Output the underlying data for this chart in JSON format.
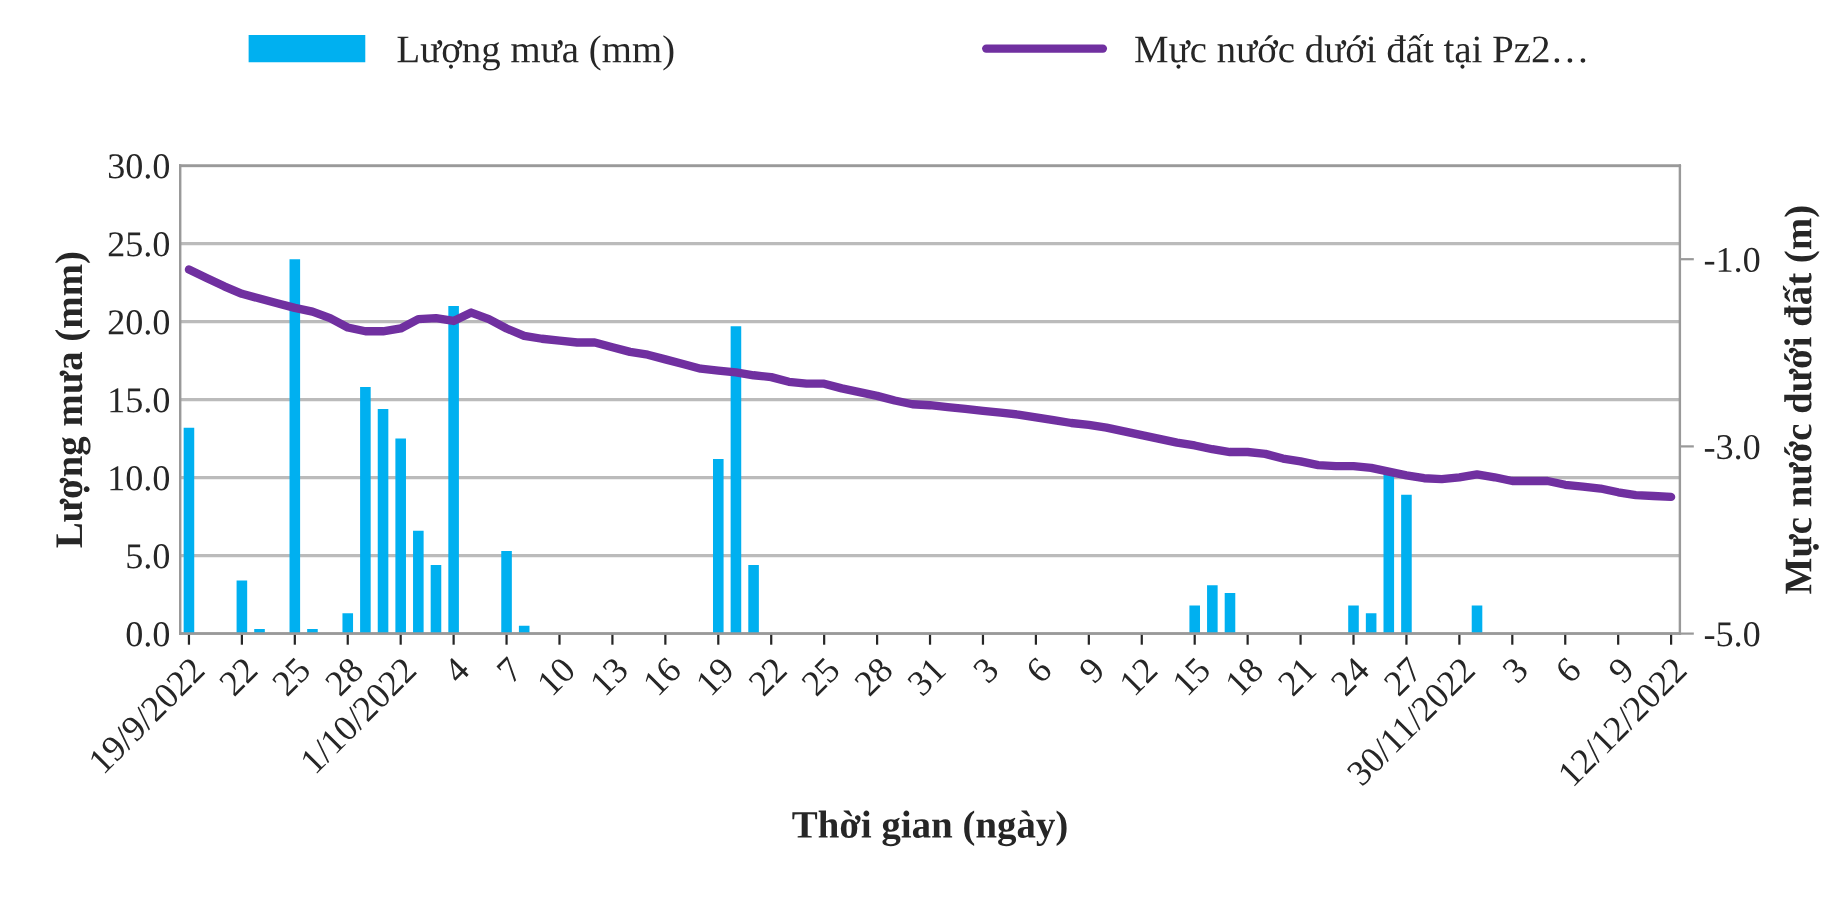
{
  "chart_data": {
    "type": "bar",
    "xlabel": "Thời gian (ngày)",
    "ylabel": "Lượng mưa (mm)",
    "y2label": "Mực nước dưới đất (m)",
    "categories": [
      "19/9/2022",
      null,
      null,
      "22",
      null,
      null,
      "25",
      null,
      null,
      "28",
      null,
      null,
      "1/10/2022",
      null,
      null,
      "4",
      null,
      null,
      "7",
      null,
      null,
      "10",
      null,
      null,
      "13",
      null,
      null,
      "16",
      null,
      null,
      "19",
      null,
      null,
      "22",
      null,
      null,
      "25",
      null,
      null,
      "28",
      null,
      null,
      "31",
      null,
      null,
      "3",
      null,
      null,
      "6",
      null,
      null,
      "9",
      null,
      null,
      "12",
      null,
      null,
      "15",
      null,
      null,
      "18",
      null,
      null,
      "21",
      null,
      null,
      "24",
      null,
      null,
      "27",
      null,
      null,
      "30/11/2022",
      null,
      null,
      "3",
      null,
      null,
      "6",
      null,
      null,
      "9",
      null,
      null,
      "12/12/2022"
    ],
    "series": [
      {
        "name": "Lượng mưa (mm)",
        "color": "#00b0f0",
        "values": [
          13.2,
          0,
          0,
          3.4,
          0.3,
          0,
          24.0,
          0.3,
          0,
          1.3,
          15.8,
          14.4,
          12.5,
          6.6,
          4.4,
          21.0,
          0,
          0,
          5.3,
          0.5,
          0,
          0,
          0,
          0,
          0,
          0,
          0,
          0,
          0,
          0,
          11.2,
          19.7,
          4.4,
          0,
          0,
          0,
          0,
          0,
          0,
          0,
          0,
          0,
          0,
          0,
          0,
          0,
          0,
          0,
          0,
          0,
          0,
          0,
          0,
          0,
          0,
          0,
          0,
          1.8,
          3.1,
          2.6,
          0,
          0,
          0,
          0,
          0,
          0,
          1.8,
          1.3,
          10.3,
          8.9,
          0,
          0,
          0,
          1.8,
          0,
          0,
          0,
          0,
          0,
          0,
          0,
          0,
          0,
          0,
          0
        ]
      },
      {
        "name": "Mực nước dưới đất tại Pz2…",
        "type": "line",
        "axis": "y2",
        "color": "#7030a0",
        "values": [
          -1.11,
          -1.2,
          -1.29,
          -1.37,
          -1.42,
          -1.47,
          -1.52,
          -1.56,
          -1.63,
          -1.73,
          -1.77,
          -1.77,
          -1.74,
          -1.64,
          -1.63,
          -1.66,
          -1.57,
          -1.64,
          -1.74,
          -1.82,
          -1.85,
          -1.87,
          -1.89,
          -1.89,
          -1.94,
          -1.99,
          -2.02,
          -2.07,
          -2.12,
          -2.17,
          -2.19,
          -2.21,
          -2.24,
          -2.26,
          -2.31,
          -2.33,
          -2.33,
          -2.38,
          -2.42,
          -2.46,
          -2.51,
          -2.55,
          -2.56,
          -2.58,
          -2.6,
          -2.62,
          -2.64,
          -2.66,
          -2.69,
          -2.72,
          -2.75,
          -2.77,
          -2.8,
          -2.84,
          -2.88,
          -2.92,
          -2.96,
          -2.99,
          -3.03,
          -3.06,
          -3.06,
          -3.08,
          -3.13,
          -3.16,
          -3.2,
          -3.21,
          -3.21,
          -3.23,
          -3.27,
          -3.31,
          -3.34,
          -3.35,
          -3.33,
          -3.3,
          -3.33,
          -3.37,
          -3.37,
          -3.37,
          -3.41,
          -3.43,
          -3.45,
          -3.49,
          -3.52,
          -3.53,
          -3.54
        ]
      }
    ],
    "ylim": [
      0,
      30
    ],
    "yticks": [
      {
        "value": 0,
        "label": "0.0"
      },
      {
        "value": 5,
        "label": "5.0"
      },
      {
        "value": 10,
        "label": "10.0"
      },
      {
        "value": 15,
        "label": "15.0"
      },
      {
        "value": 20,
        "label": "20.0"
      },
      {
        "value": 25,
        "label": "25.0"
      },
      {
        "value": 30,
        "label": "30.0"
      }
    ],
    "y2lim": [
      -5,
      0
    ],
    "y2ticks": [
      {
        "value": -1,
        "label": "-1.0"
      },
      {
        "value": -3,
        "label": "-3.0"
      },
      {
        "value": -5,
        "label": "-5.0"
      }
    ],
    "grid": "y",
    "legend": "top",
    "marker": "none",
    "line_style": "solid"
  }
}
